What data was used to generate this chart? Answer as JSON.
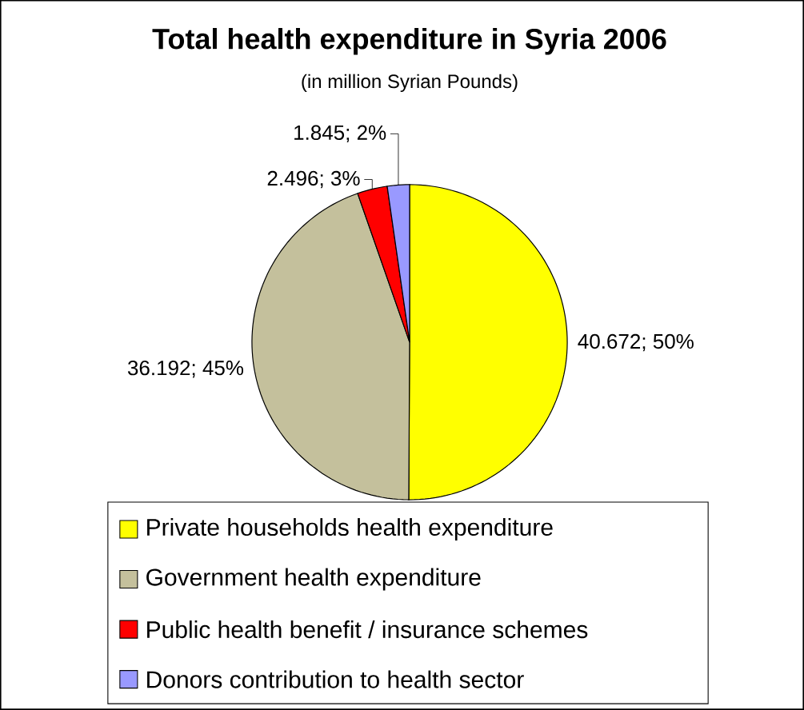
{
  "chart_data": {
    "type": "pie",
    "title": "Total health expenditure in Syria 2006",
    "subtitle": "(in million Syrian Pounds)",
    "categories": [
      "Private households health expenditure",
      "Government health expenditure",
      "Public health benefit / insurance schemes",
      "Donors contribution to health sector"
    ],
    "values": [
      40.672,
      36.192,
      2.496,
      1.845
    ],
    "colors": [
      "#ffff00",
      "#c4c09c",
      "#ff0000",
      "#9999ff"
    ],
    "value_labels": [
      "40.672; 50%",
      "36.192; 45%",
      "2.496; 3%",
      "1.845; 2%"
    ],
    "legend": "bottom"
  }
}
